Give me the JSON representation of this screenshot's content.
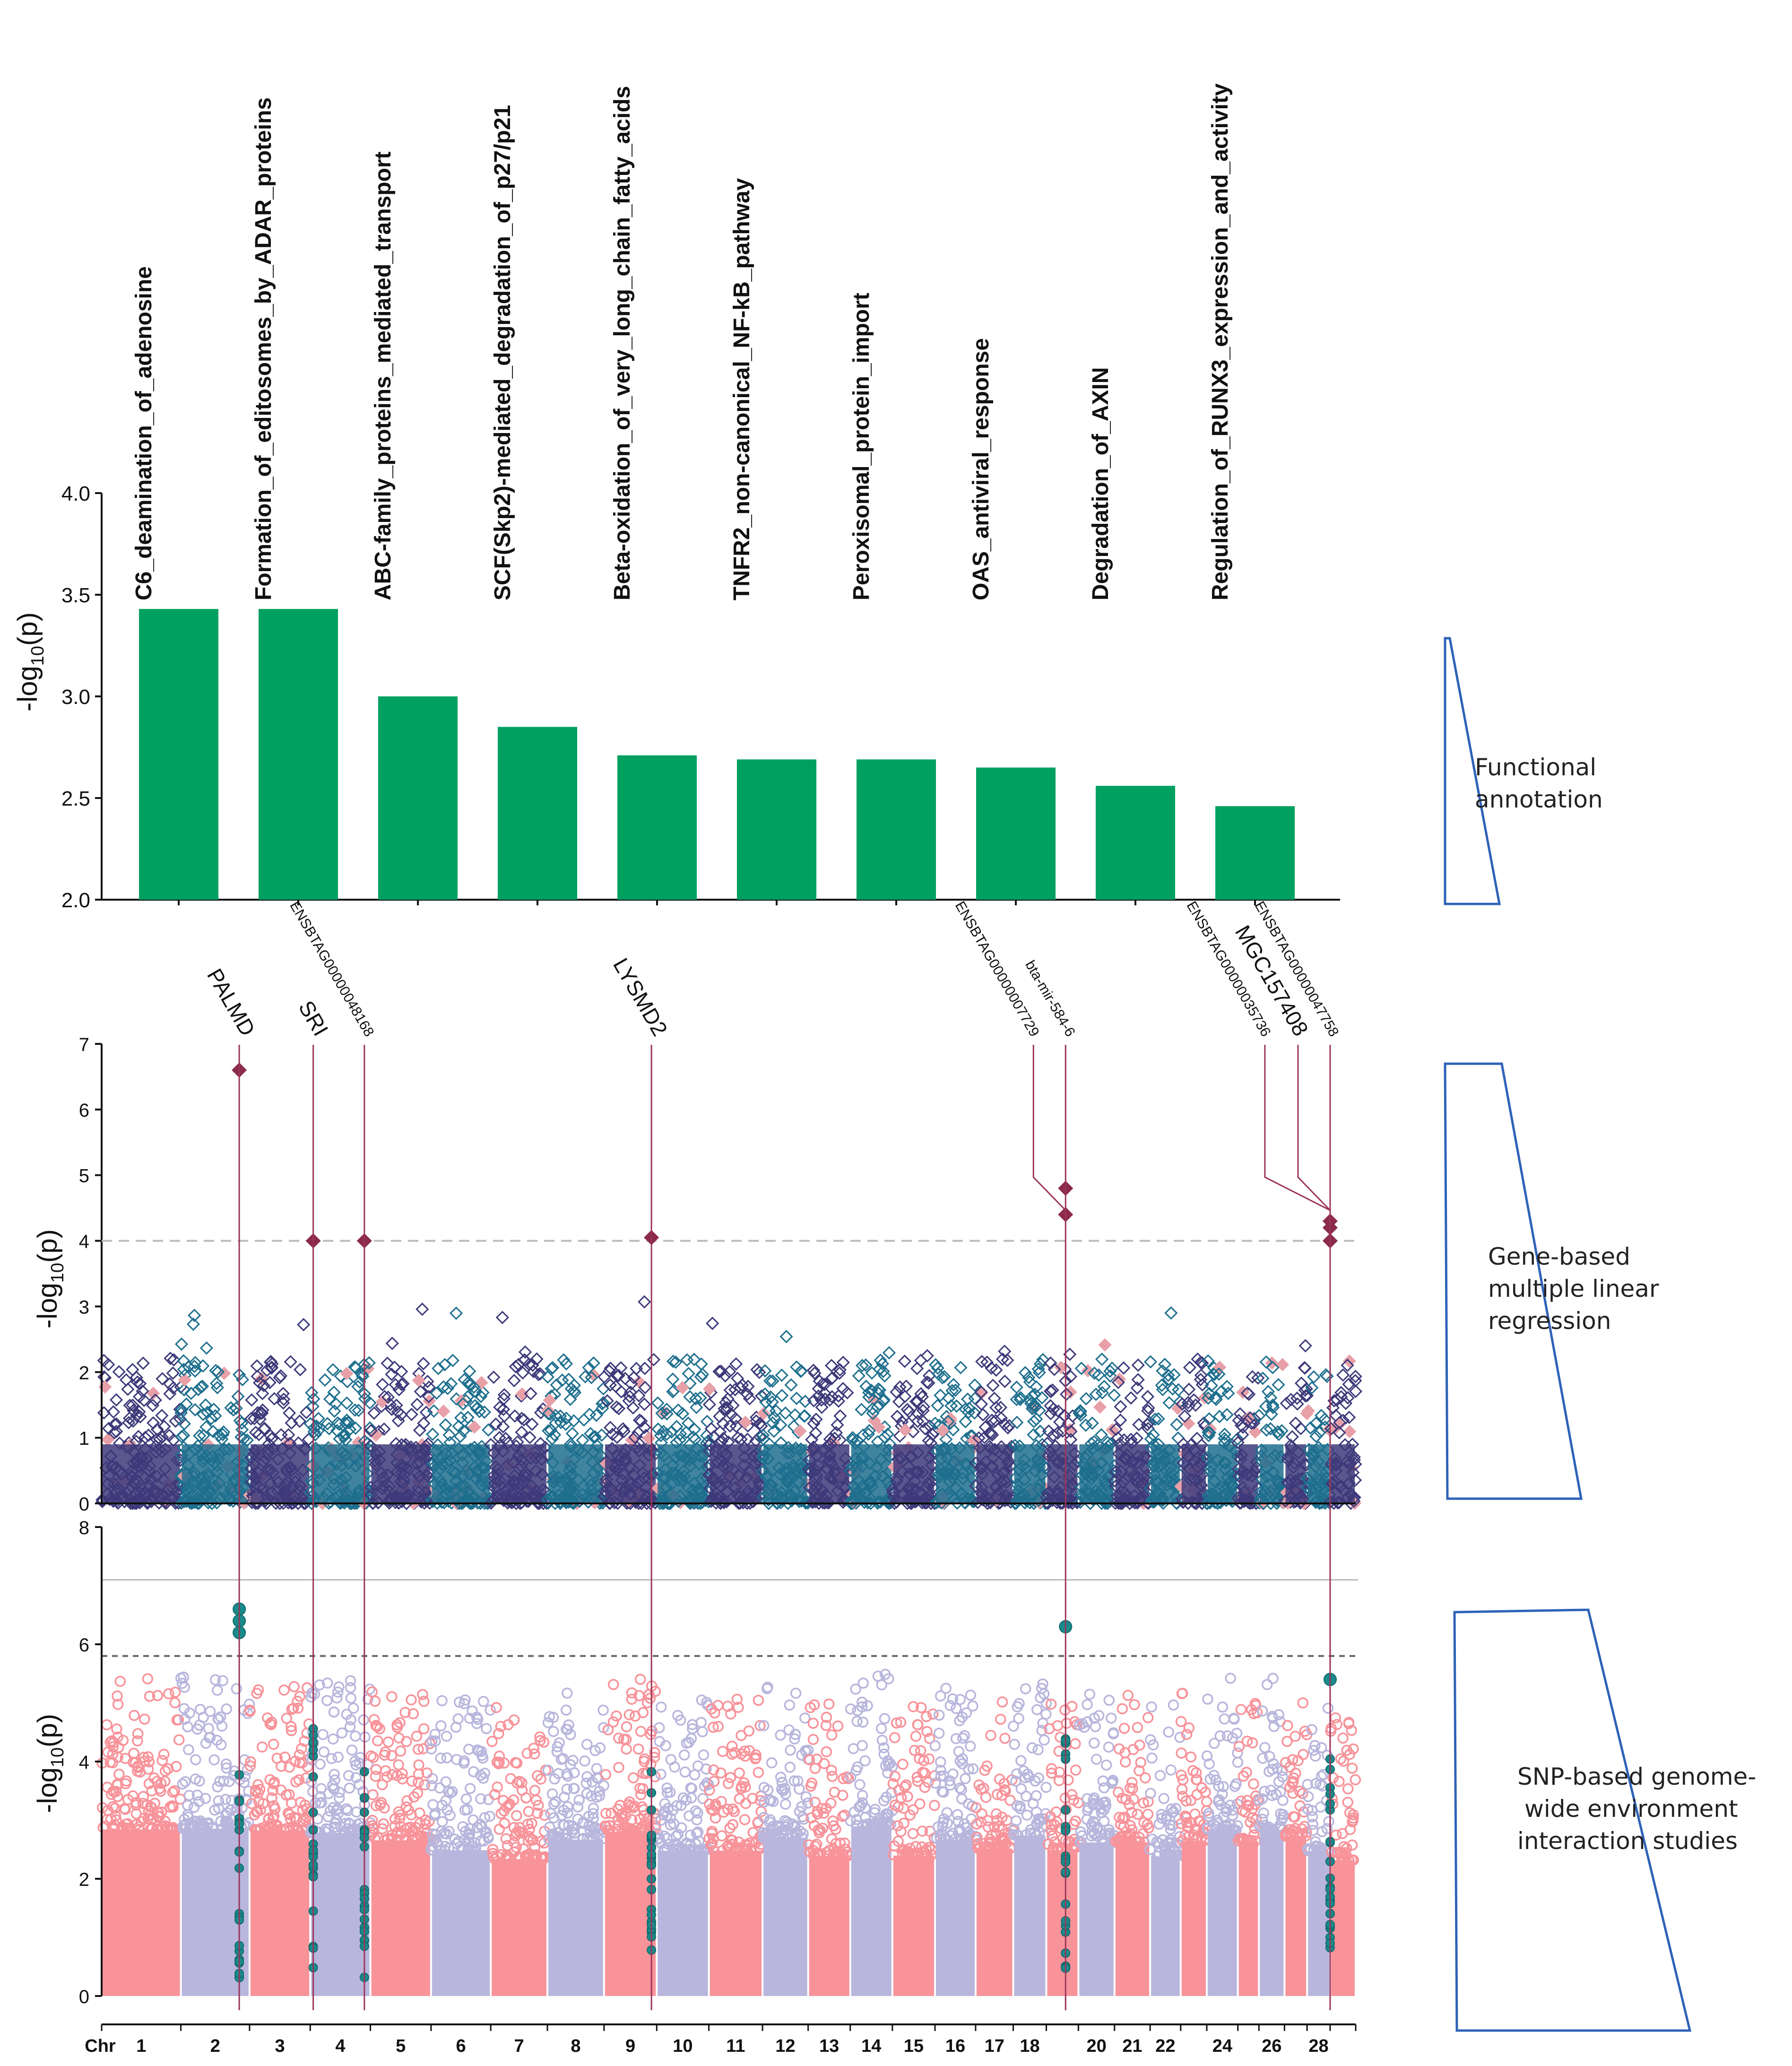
{
  "chart_data": [
    {
      "type": "bar",
      "categories": [
        "C6_deamination_of_adenosine",
        "Formation_of_editosomes_by_ADAR_proteins",
        "ABC-family_proteins_mediated_transport",
        "SCF(Skp2)-mediated_degradation_of_p27/p21",
        "Beta-oxidation_of_very_long_chain_fatty_acids",
        "TNFR2_non-canonical_NF-kB_pathway",
        "Peroxisomal_protein_import",
        "OAS_antiviral_response",
        "Degradation_of_AXIN",
        "Regulation_of_RUNX3_expression_and_activity"
      ],
      "values": [
        3.43,
        3.43,
        3.0,
        2.85,
        2.71,
        2.69,
        2.69,
        2.65,
        2.56,
        2.46
      ],
      "ylabel_main": "-log",
      "ylabel_sub": "10",
      "ylabel_tail": "(p)",
      "ylim": [
        2.0,
        4.0
      ],
      "yticks": [
        "2.0",
        "2.5",
        "3.0",
        "3.5",
        "4.0"
      ],
      "ytick_values": [
        2.0,
        2.5,
        3.0,
        3.5,
        4.0
      ],
      "bar_color": "#00a060"
    },
    {
      "type": "scatter",
      "ylabel_main": "-log",
      "ylabel_sub": "10",
      "ylabel_tail": "(p)",
      "ylim": [
        0,
        7
      ],
      "yticks": [
        "0",
        "1",
        "2",
        "3",
        "4",
        "5",
        "6",
        "7"
      ],
      "ytick_values": [
        0,
        1,
        2,
        3,
        4,
        5,
        6,
        7
      ],
      "threshold": 4.0,
      "colors": [
        "#3d3a7a",
        "#1e6f8e"
      ],
      "highlight_color": "#e8a0a8",
      "hit_color": "#8b2a4a",
      "hits": [
        {
          "label": "PALMD",
          "chr_pos": 2.85,
          "value": 6.6
        },
        {
          "label": "SRI",
          "chr_pos": 4.05,
          "value": 4.0
        },
        {
          "label": "ENSBTAG00000048168",
          "chr_pos": 4.9,
          "value": 4.0
        },
        {
          "label": "LYSMD2",
          "chr_pos": 9.9,
          "value": 4.05
        },
        {
          "label": "ENSBTAG00000007729",
          "chr_pos": 19.6,
          "value": 4.8
        },
        {
          "label": "bta-mir-584-6",
          "chr_pos": 19.6,
          "value": 4.4
        },
        {
          "label": "ENSBTAG00000035736",
          "chr_pos": 29.0,
          "value": 4.3
        },
        {
          "label": "MGC157408",
          "chr_pos": 29.0,
          "value": 4.2
        },
        {
          "label": "ENSBTAG00000047758",
          "chr_pos": 29.0,
          "value": 4.0
        }
      ]
    },
    {
      "type": "scatter",
      "ylabel_main": "-log",
      "ylabel_sub": "10",
      "ylabel_tail": "(p)",
      "ylim": [
        0,
        8
      ],
      "yticks": [
        "0",
        "2",
        "4",
        "6",
        "8"
      ],
      "ytick_values": [
        0,
        2,
        4,
        6,
        8
      ],
      "threshold_suggestive": 5.8,
      "threshold_significant": 7.1,
      "colors": [
        "#f8939a",
        "#b9b6dd"
      ],
      "hit_color": "#1a8a8a",
      "xlabel": "Chr",
      "chromosomes": [
        "1",
        "2",
        "3",
        "4",
        "5",
        "6",
        "7",
        "8",
        "9",
        "10",
        "11",
        "12",
        "13",
        "14",
        "15",
        "16",
        "17",
        "18",
        "19",
        "20",
        "21",
        "22",
        "23",
        "24",
        "25",
        "26",
        "27",
        "28",
        "29"
      ],
      "xtick_labels": [
        "1",
        "2",
        "3",
        "4",
        "5",
        "6",
        "7",
        "8",
        "9",
        "10",
        "11",
        "12",
        "13",
        "14",
        "15",
        "16",
        "17",
        "18",
        "20",
        "21",
        "22",
        "24",
        "26",
        "28"
      ],
      "xtick_chr": [
        1,
        2,
        3,
        4,
        5,
        6,
        7,
        8,
        9,
        10,
        11,
        12,
        13,
        14,
        15,
        16,
        17,
        18,
        20,
        21,
        22,
        24,
        26,
        28
      ]
    }
  ],
  "side_labels": {
    "functional_line1": "Functional",
    "functional_line2": "annotation",
    "gene_line1": "Gene-based",
    "gene_line2": "multiple linear",
    "gene_line3": "regression",
    "snp_line1": "SNP-based genome-",
    "snp_line2": "wide environment",
    "snp_line3": "interaction studies"
  }
}
